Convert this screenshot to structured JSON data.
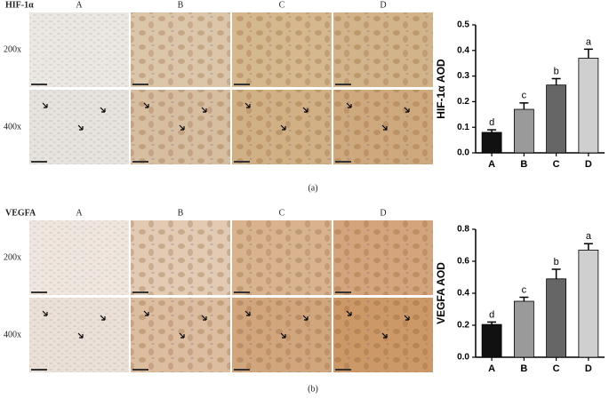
{
  "panels": [
    {
      "marker": "HIF-1α",
      "columns": [
        "A",
        "B",
        "C",
        "D"
      ],
      "rows": [
        "200x",
        "400x"
      ],
      "caption": "(a)"
    },
    {
      "marker": "VEGFA",
      "columns": [
        "A",
        "B",
        "C",
        "D"
      ],
      "rows": [
        "200x",
        "400x"
      ],
      "caption": "(b)"
    }
  ],
  "chart_data": [
    {
      "type": "bar",
      "y_label": "HIF-1α AOD",
      "categories": [
        "A",
        "B",
        "C",
        "D"
      ],
      "values": [
        0.08,
        0.17,
        0.265,
        0.37
      ],
      "errors": [
        0.01,
        0.025,
        0.025,
        0.035
      ],
      "annotations": [
        "d",
        "c",
        "b",
        "a"
      ],
      "colors": [
        "#111111",
        "#9a9a9a",
        "#666666",
        "#cfcfcf"
      ],
      "ylim": [
        0,
        0.5
      ],
      "yticks": [
        {
          "value": 0,
          "label": "0.0"
        },
        0.1,
        0.2,
        0.3,
        0.4,
        0.5
      ]
    },
    {
      "type": "bar",
      "y_label": "VEGFA AOD",
      "categories": [
        "A",
        "B",
        "C",
        "D"
      ],
      "values": [
        0.205,
        0.35,
        0.49,
        0.67
      ],
      "errors": [
        0.015,
        0.025,
        0.06,
        0.04
      ],
      "annotations": [
        "d",
        "c",
        "b",
        "a"
      ],
      "colors": [
        "#111111",
        "#9a9a9a",
        "#666666",
        "#cfcfcf"
      ],
      "ylim": [
        0,
        0.8
      ],
      "yticks": [
        {
          "value": 0,
          "label": "0.0"
        },
        0.2,
        0.4,
        0.6,
        0.8
      ]
    }
  ]
}
